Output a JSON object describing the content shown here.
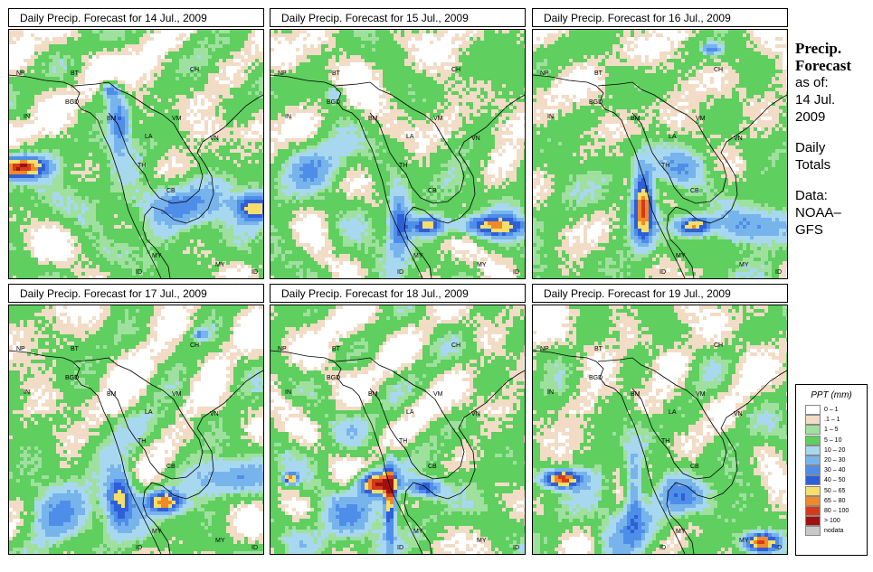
{
  "panels": [
    {
      "title": "Daily Precip. Forecast for  14 Jul., 2009"
    },
    {
      "title": "Daily Precip. Forecast for  15 Jul., 2009"
    },
    {
      "title": "Daily Precip. Forecast for  16 Jul., 2009"
    },
    {
      "title": "Daily Precip. Forecast for  17 Jul., 2009"
    },
    {
      "title": "Daily Precip. Forecast for  18 Jul., 2009"
    },
    {
      "title": "Daily Precip. Forecast for  19 Jul., 2009"
    }
  ],
  "country_labels": {
    "NP": "NP",
    "BT": "BT",
    "BGD": "BGD",
    "IN": "IN",
    "CH": "CH",
    "BM": "BM",
    "VM": "VM",
    "LA": "LA",
    "TH": "TH",
    "CB": "CB",
    "MY": "MY",
    "ID": "ID",
    "VN": "VN"
  },
  "sidebar": {
    "title_line1": "Precip.",
    "title_line2": "Forecast",
    "asof": "as of:",
    "date_line1": "14 Jul.",
    "date_line2": "2009",
    "daily_line1": "Daily",
    "daily_line2": "Totals",
    "data_line1": "Data:",
    "data_line2": "NOAA–",
    "data_line3": "GFS"
  },
  "legend": {
    "title": "PPT (mm)",
    "items": [
      {
        "label": "0 – 1",
        "color": "#ffffff"
      },
      {
        "label": ".1 – 1",
        "color": "#f2dcc6"
      },
      {
        "label": "1 – 5",
        "color": "#9fe09f"
      },
      {
        "label": "5 – 10",
        "color": "#5fcf5f"
      },
      {
        "label": "10 – 20",
        "color": "#a8d8f0"
      },
      {
        "label": "20 – 30",
        "color": "#78b4ec"
      },
      {
        "label": "30 – 40",
        "color": "#4f8ee8"
      },
      {
        "label": "40 – 50",
        "color": "#2e5fd8"
      },
      {
        "label": "50 – 65",
        "color": "#f5df6a"
      },
      {
        "label": "65 – 80",
        "color": "#f08a28"
      },
      {
        "label": "80 – 100",
        "color": "#d43a1c"
      },
      {
        "label": "> 100",
        "color": "#a01010"
      },
      {
        "label": "nodata",
        "color": "#c8c8c8"
      }
    ]
  }
}
